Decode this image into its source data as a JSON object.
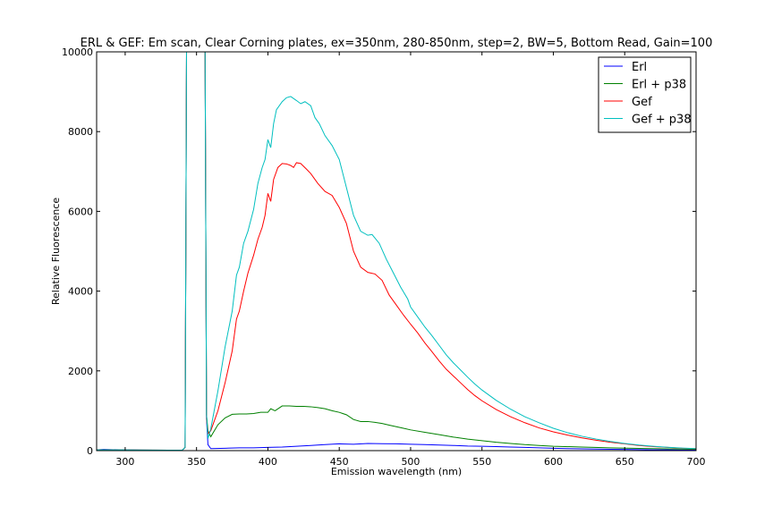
{
  "chart_data": {
    "type": "line",
    "title": "ERL & GEF: Em scan, Clear Corning plates, ex=350nm, 280-850nm, step=2, BW=5, Bottom Read, Gain=100",
    "xlabel": "Emission wavelength (nm)",
    "ylabel": "Relative Fluorescence",
    "xlim": [
      280,
      700
    ],
    "ylim": [
      0,
      10000
    ],
    "xticks": [
      300,
      350,
      400,
      450,
      500,
      550,
      600,
      650,
      700
    ],
    "yticks": [
      0,
      2000,
      4000,
      6000,
      8000,
      10000
    ],
    "grid": false,
    "legend_position": "top-right",
    "series": [
      {
        "name": "Erl",
        "color": "#0000ff",
        "points": [
          [
            280,
            20
          ],
          [
            285,
            30
          ],
          [
            290,
            25
          ],
          [
            300,
            20
          ],
          [
            310,
            15
          ],
          [
            320,
            10
          ],
          [
            330,
            10
          ],
          [
            340,
            15
          ],
          [
            342,
            80
          ],
          [
            343,
            10000
          ],
          [
            356,
            10000
          ],
          [
            357,
            800
          ],
          [
            358,
            150
          ],
          [
            360,
            50
          ],
          [
            370,
            60
          ],
          [
            380,
            70
          ],
          [
            390,
            70
          ],
          [
            400,
            80
          ],
          [
            410,
            90
          ],
          [
            420,
            110
          ],
          [
            430,
            130
          ],
          [
            440,
            150
          ],
          [
            450,
            170
          ],
          [
            460,
            160
          ],
          [
            470,
            180
          ],
          [
            480,
            175
          ],
          [
            490,
            170
          ],
          [
            500,
            160
          ],
          [
            510,
            150
          ],
          [
            520,
            140
          ],
          [
            530,
            130
          ],
          [
            540,
            115
          ],
          [
            550,
            110
          ],
          [
            560,
            100
          ],
          [
            570,
            90
          ],
          [
            580,
            80
          ],
          [
            590,
            70
          ],
          [
            600,
            60
          ],
          [
            610,
            50
          ],
          [
            620,
            45
          ],
          [
            630,
            40
          ],
          [
            640,
            35
          ],
          [
            650,
            30
          ],
          [
            660,
            25
          ],
          [
            670,
            20
          ],
          [
            680,
            20
          ],
          [
            690,
            15
          ],
          [
            700,
            15
          ]
        ]
      },
      {
        "name": "Erl + p38",
        "color": "#008000",
        "points": [
          [
            280,
            20
          ],
          [
            290,
            20
          ],
          [
            300,
            15
          ],
          [
            310,
            15
          ],
          [
            320,
            10
          ],
          [
            330,
            10
          ],
          [
            340,
            15
          ],
          [
            342,
            80
          ],
          [
            343,
            10000
          ],
          [
            356,
            10000
          ],
          [
            357,
            900
          ],
          [
            358,
            500
          ],
          [
            360,
            350
          ],
          [
            365,
            650
          ],
          [
            370,
            820
          ],
          [
            375,
            910
          ],
          [
            380,
            920
          ],
          [
            385,
            920
          ],
          [
            390,
            930
          ],
          [
            395,
            960
          ],
          [
            400,
            960
          ],
          [
            402,
            1050
          ],
          [
            405,
            1000
          ],
          [
            410,
            1120
          ],
          [
            415,
            1120
          ],
          [
            420,
            1110
          ],
          [
            425,
            1110
          ],
          [
            430,
            1100
          ],
          [
            435,
            1080
          ],
          [
            440,
            1050
          ],
          [
            445,
            1000
          ],
          [
            450,
            960
          ],
          [
            455,
            900
          ],
          [
            460,
            780
          ],
          [
            465,
            730
          ],
          [
            470,
            730
          ],
          [
            475,
            710
          ],
          [
            480,
            680
          ],
          [
            485,
            640
          ],
          [
            490,
            600
          ],
          [
            495,
            560
          ],
          [
            500,
            520
          ],
          [
            510,
            460
          ],
          [
            520,
            400
          ],
          [
            530,
            340
          ],
          [
            540,
            290
          ],
          [
            550,
            250
          ],
          [
            560,
            210
          ],
          [
            570,
            180
          ],
          [
            580,
            150
          ],
          [
            590,
            130
          ],
          [
            600,
            110
          ],
          [
            620,
            90
          ],
          [
            640,
            70
          ],
          [
            660,
            55
          ],
          [
            680,
            45
          ],
          [
            700,
            35
          ]
        ]
      },
      {
        "name": "Gef",
        "color": "#ff0000",
        "points": [
          [
            280,
            20
          ],
          [
            290,
            20
          ],
          [
            300,
            20
          ],
          [
            310,
            15
          ],
          [
            320,
            15
          ],
          [
            330,
            10
          ],
          [
            340,
            15
          ],
          [
            342,
            80
          ],
          [
            343,
            10000
          ],
          [
            356,
            10000
          ],
          [
            357,
            800
          ],
          [
            358,
            420
          ],
          [
            360,
            500
          ],
          [
            365,
            1000
          ],
          [
            370,
            1700
          ],
          [
            375,
            2500
          ],
          [
            378,
            3300
          ],
          [
            380,
            3500
          ],
          [
            383,
            4000
          ],
          [
            386,
            4450
          ],
          [
            390,
            4900
          ],
          [
            393,
            5300
          ],
          [
            396,
            5600
          ],
          [
            398,
            5900
          ],
          [
            400,
            6450
          ],
          [
            402,
            6250
          ],
          [
            404,
            6800
          ],
          [
            407,
            7100
          ],
          [
            410,
            7200
          ],
          [
            413,
            7190
          ],
          [
            416,
            7150
          ],
          [
            418,
            7100
          ],
          [
            420,
            7220
          ],
          [
            423,
            7200
          ],
          [
            427,
            7060
          ],
          [
            430,
            6950
          ],
          [
            435,
            6700
          ],
          [
            440,
            6500
          ],
          [
            445,
            6400
          ],
          [
            450,
            6100
          ],
          [
            455,
            5700
          ],
          [
            460,
            5000
          ],
          [
            465,
            4600
          ],
          [
            470,
            4470
          ],
          [
            475,
            4430
          ],
          [
            480,
            4270
          ],
          [
            485,
            3900
          ],
          [
            490,
            3650
          ],
          [
            495,
            3400
          ],
          [
            500,
            3170
          ],
          [
            505,
            2950
          ],
          [
            510,
            2700
          ],
          [
            515,
            2480
          ],
          [
            520,
            2250
          ],
          [
            525,
            2040
          ],
          [
            530,
            1870
          ],
          [
            535,
            1700
          ],
          [
            540,
            1530
          ],
          [
            545,
            1380
          ],
          [
            550,
            1250
          ],
          [
            560,
            1030
          ],
          [
            570,
            850
          ],
          [
            580,
            700
          ],
          [
            590,
            570
          ],
          [
            600,
            470
          ],
          [
            610,
            390
          ],
          [
            620,
            320
          ],
          [
            630,
            260
          ],
          [
            640,
            210
          ],
          [
            650,
            170
          ],
          [
            660,
            130
          ],
          [
            670,
            100
          ],
          [
            680,
            80
          ],
          [
            690,
            60
          ],
          [
            700,
            50
          ]
        ]
      },
      {
        "name": "Gef + p38",
        "color": "#00bfbf",
        "points": [
          [
            280,
            20
          ],
          [
            290,
            20
          ],
          [
            300,
            20
          ],
          [
            310,
            15
          ],
          [
            320,
            15
          ],
          [
            330,
            10
          ],
          [
            340,
            15
          ],
          [
            342,
            80
          ],
          [
            343,
            10000
          ],
          [
            356,
            10000
          ],
          [
            357,
            900
          ],
          [
            358,
            300
          ],
          [
            360,
            550
          ],
          [
            365,
            1500
          ],
          [
            370,
            2600
          ],
          [
            375,
            3500
          ],
          [
            378,
            4400
          ],
          [
            380,
            4600
          ],
          [
            383,
            5200
          ],
          [
            386,
            5500
          ],
          [
            390,
            6050
          ],
          [
            393,
            6700
          ],
          [
            396,
            7100
          ],
          [
            398,
            7300
          ],
          [
            400,
            7800
          ],
          [
            402,
            7600
          ],
          [
            404,
            8200
          ],
          [
            406,
            8550
          ],
          [
            410,
            8750
          ],
          [
            413,
            8850
          ],
          [
            416,
            8880
          ],
          [
            420,
            8780
          ],
          [
            423,
            8700
          ],
          [
            426,
            8750
          ],
          [
            430,
            8650
          ],
          [
            433,
            8350
          ],
          [
            436,
            8200
          ],
          [
            440,
            7900
          ],
          [
            445,
            7650
          ],
          [
            450,
            7300
          ],
          [
            455,
            6600
          ],
          [
            460,
            5900
          ],
          [
            465,
            5500
          ],
          [
            470,
            5400
          ],
          [
            473,
            5420
          ],
          [
            478,
            5200
          ],
          [
            483,
            4800
          ],
          [
            488,
            4450
          ],
          [
            493,
            4100
          ],
          [
            498,
            3800
          ],
          [
            500,
            3600
          ],
          [
            505,
            3350
          ],
          [
            510,
            3100
          ],
          [
            515,
            2880
          ],
          [
            520,
            2640
          ],
          [
            525,
            2400
          ],
          [
            530,
            2200
          ],
          [
            535,
            2020
          ],
          [
            540,
            1840
          ],
          [
            545,
            1670
          ],
          [
            550,
            1520
          ],
          [
            560,
            1260
          ],
          [
            570,
            1040
          ],
          [
            580,
            850
          ],
          [
            590,
            700
          ],
          [
            600,
            560
          ],
          [
            610,
            450
          ],
          [
            620,
            360
          ],
          [
            630,
            290
          ],
          [
            640,
            230
          ],
          [
            650,
            180
          ],
          [
            660,
            140
          ],
          [
            670,
            110
          ],
          [
            680,
            85
          ],
          [
            690,
            65
          ],
          [
            700,
            50
          ]
        ]
      }
    ]
  }
}
